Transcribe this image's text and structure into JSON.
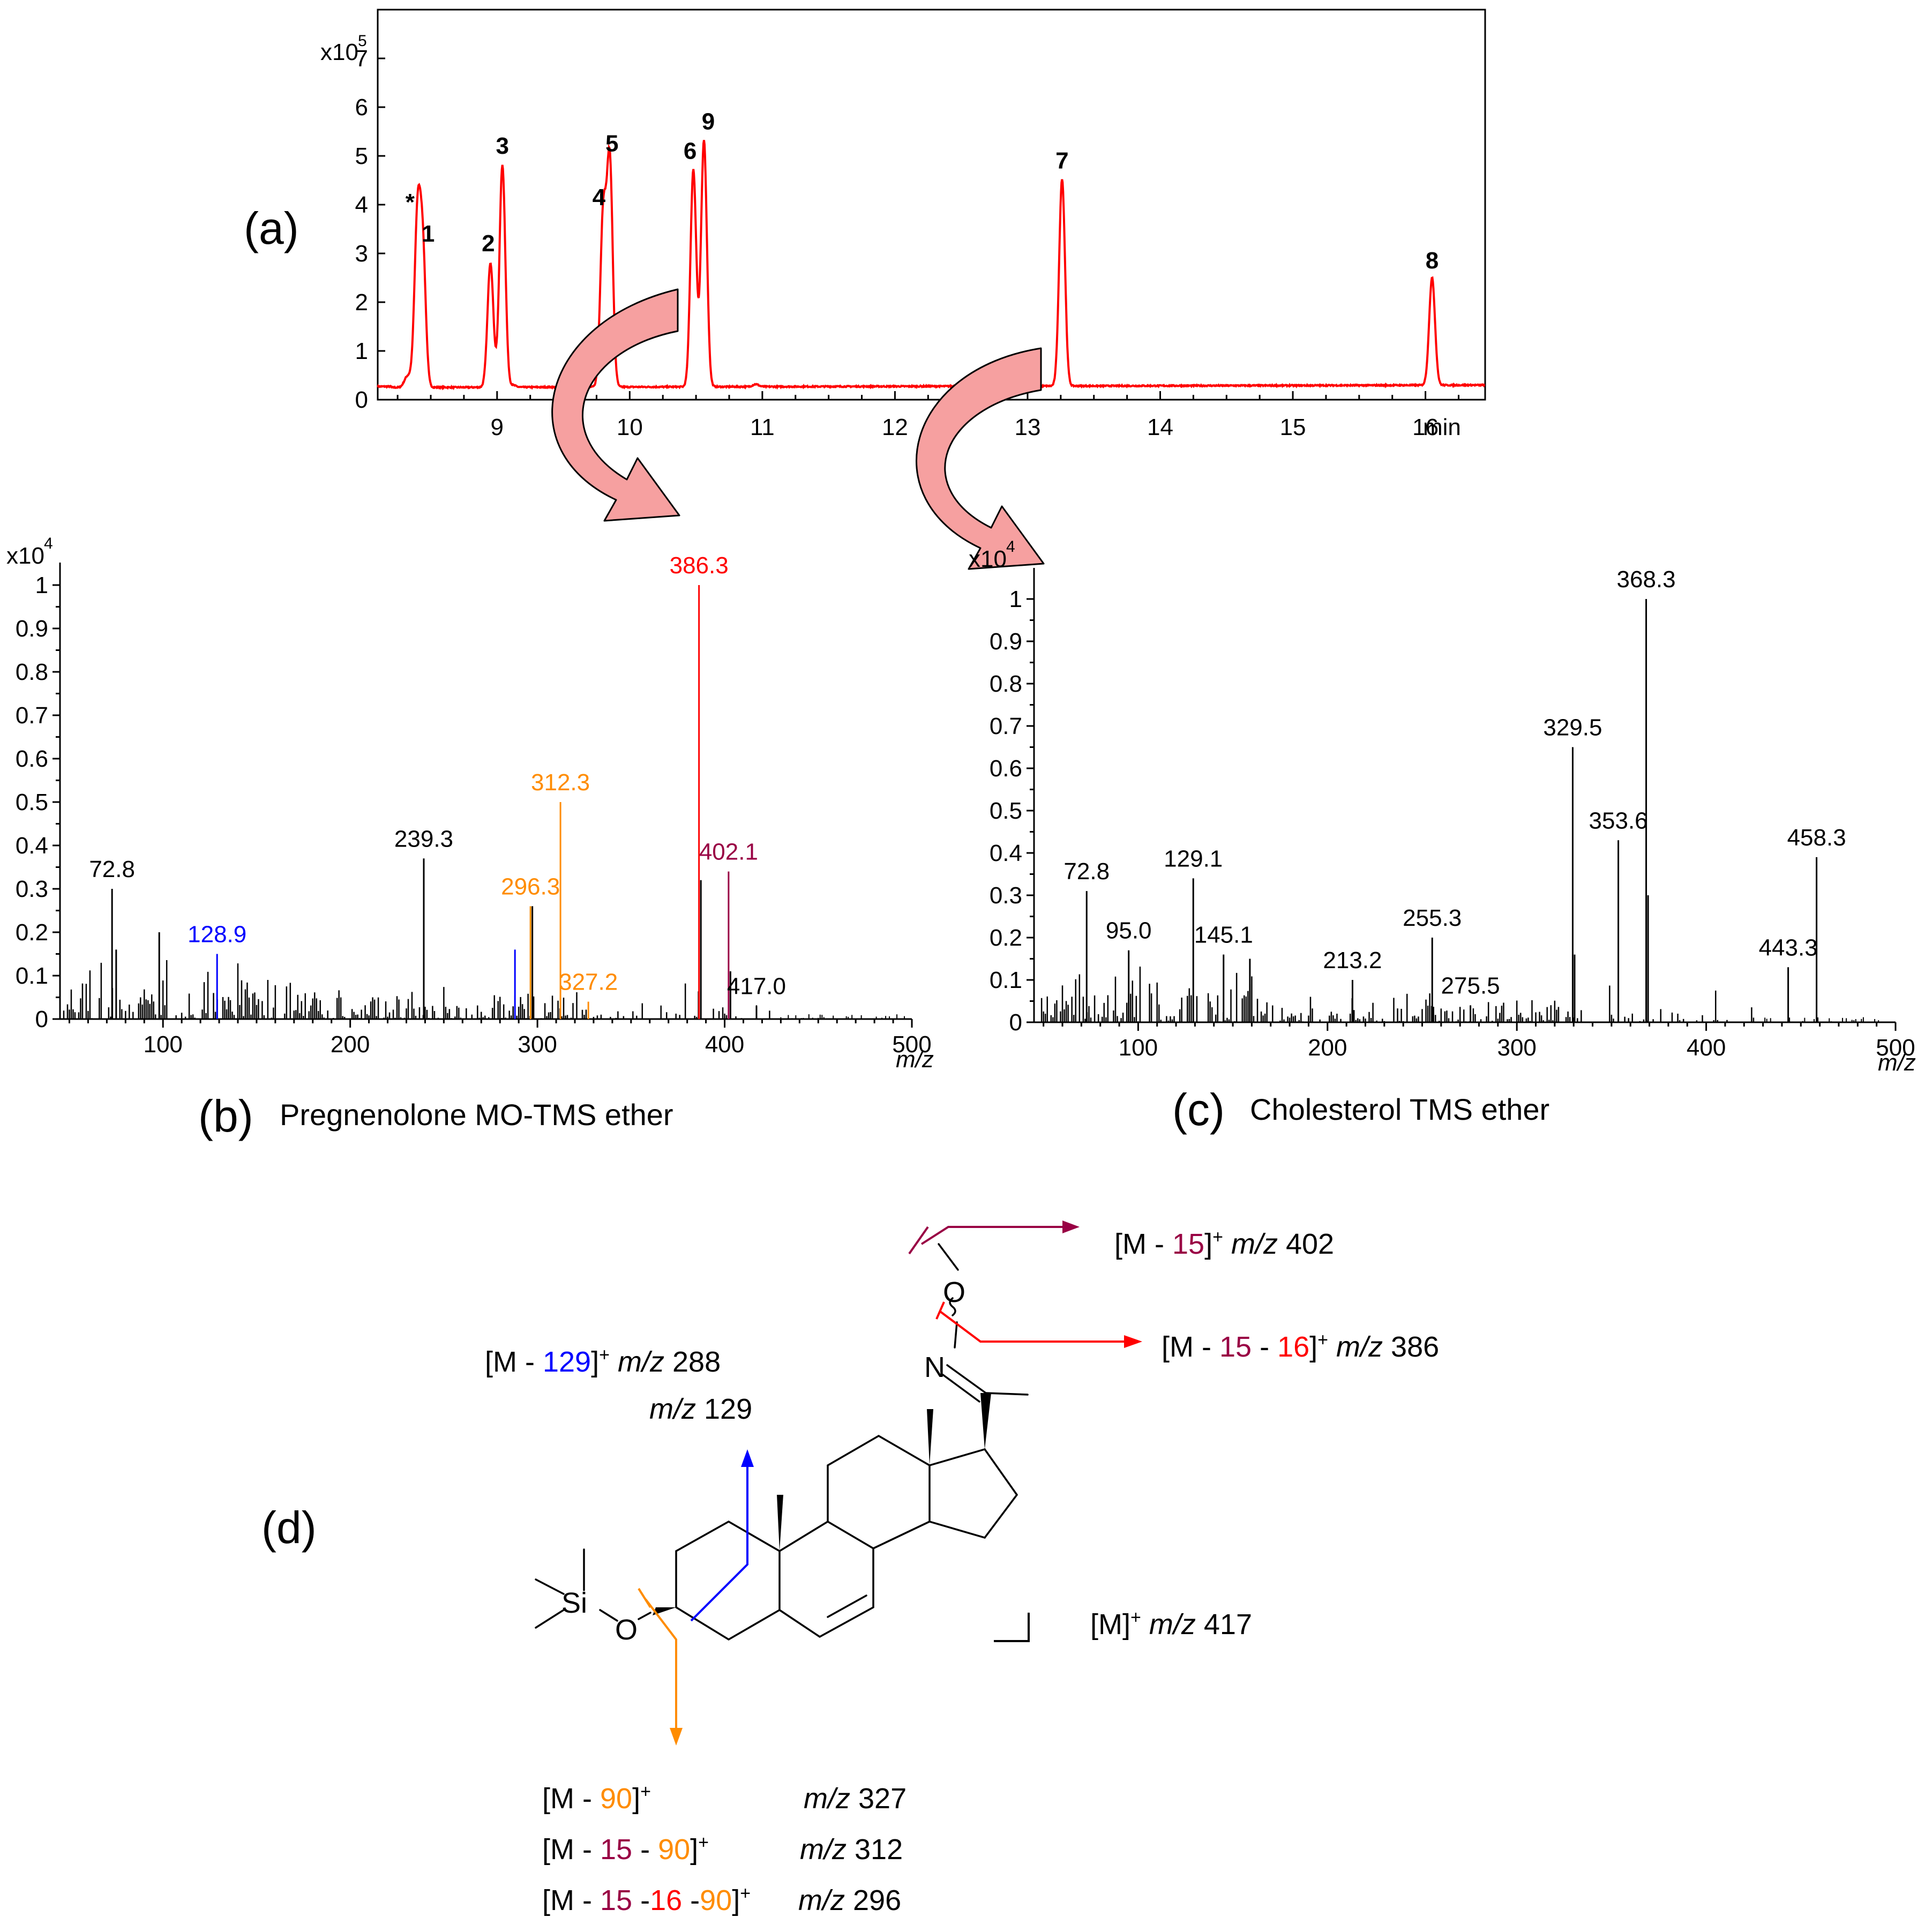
{
  "colors": {
    "red": "#ff0000",
    "orange": "#ff8c00",
    "purple": "#990044",
    "blue": "#0000ff",
    "arrow_fill": "#f6a0a0",
    "black": "#000000"
  },
  "panel_a": {
    "label": "(a)",
    "exponent_base": "x10",
    "exponent": "5",
    "unit": "min",
    "x_ticks": [
      "9",
      "10",
      "11",
      "12",
      "13",
      "14",
      "15",
      "16"
    ],
    "y_ticks": [
      "0",
      "1",
      "2",
      "3",
      "4",
      "5",
      "6",
      "7"
    ]
  },
  "panel_b": {
    "label": "(b)",
    "caption": "Pregnenolone MO-TMS ether",
    "exponent_base": "x10",
    "exponent": "4",
    "xlabel": "m/z",
    "x_ticks": [
      "100",
      "200",
      "300",
      "400",
      "500"
    ],
    "y_ticks": [
      "0",
      "0.1",
      "0.2",
      "0.3",
      "0.4",
      "0.5",
      "0.6",
      "0.7",
      "0.8",
      "0.9",
      "1"
    ]
  },
  "panel_c": {
    "label": "(c)",
    "caption": "Cholesterol TMS ether",
    "exponent_base": "x10",
    "exponent": "4",
    "xlabel": "m/z",
    "x_ticks": [
      "100",
      "200",
      "300",
      "400",
      "500"
    ],
    "y_ticks": [
      "0",
      "0.1",
      "0.2",
      "0.3",
      "0.4",
      "0.5",
      "0.6",
      "0.7",
      "0.8",
      "0.9",
      "1"
    ]
  },
  "panel_d": {
    "label": "(d)",
    "atoms": {
      "si": "Si",
      "o_ether": "O",
      "n": "N",
      "o_oxime": "O"
    },
    "fragments": {
      "m15": {
        "pre": "[M - ",
        "a": "15",
        "post": "]",
        "sup": "+",
        "mz": "m/z",
        "val": "402"
      },
      "m15_16": {
        "pre": "[M - ",
        "a": "15",
        "mid": " - ",
        "b": "16",
        "post": "]",
        "sup": "+",
        "mz": "m/z",
        "val": "386"
      },
      "m129": {
        "pre": "[M - ",
        "a": "129",
        "post": "]",
        "sup": "+",
        "mz": "m/z",
        "val": "288"
      },
      "mz129": {
        "mz": "m/z",
        "val": "129"
      },
      "m_ion": {
        "pre": "[M]",
        "sup": "+",
        "mz": "m/z",
        "val": "417"
      },
      "m90": {
        "pre": "[M - ",
        "a": "90",
        "post": "]",
        "sup": "+",
        "mz": "m/z",
        "val": "327"
      },
      "m15_90": {
        "pre": "[M - ",
        "a": "15",
        "mid": " - ",
        "b": "90",
        "post": "]",
        "sup": "+",
        "mz": "m/z",
        "val": "312"
      },
      "m15_16_90": {
        "pre": "[M - ",
        "a": "15",
        "mid": " -",
        "b": "16",
        "mid2": " -",
        "c": "90",
        "post": "]",
        "sup": "+",
        "mz": "m/z",
        "val": "296"
      }
    }
  },
  "chart_data": [
    {
      "id": "a",
      "type": "line",
      "xlim": [
        8.1,
        16.45
      ],
      "ylim": [
        0,
        8
      ],
      "x_ticks": [
        9,
        10,
        11,
        12,
        13,
        14,
        15,
        16
      ],
      "y_ticks": [
        0,
        1,
        2,
        3,
        4,
        5,
        6,
        7
      ],
      "color": "#ff0000",
      "baseline": 0.25,
      "peaks": [
        {
          "label": "*",
          "rt": 8.4,
          "height": 3.65
        },
        {
          "label": "1",
          "rt": 8.44,
          "height": 3.0
        },
        {
          "label": "2",
          "rt": 8.95,
          "height": 2.8
        },
        {
          "label": "3",
          "rt": 9.04,
          "height": 4.8
        },
        {
          "label": "4",
          "rt": 9.8,
          "height": 3.75
        },
        {
          "label": "5",
          "rt": 9.85,
          "height": 4.85
        },
        {
          "label": "6",
          "rt": 10.48,
          "height": 4.7
        },
        {
          "label": "9",
          "rt": 10.56,
          "height": 5.3
        },
        {
          "label": "7",
          "rt": 13.26,
          "height": 4.5
        },
        {
          "label": "8",
          "rt": 16.05,
          "height": 2.45
        }
      ]
    },
    {
      "id": "b",
      "type": "bar",
      "xlim": [
        45,
        500
      ],
      "ylim": [
        0,
        1.0
      ],
      "x_ticks": [
        100,
        200,
        300,
        400,
        500
      ],
      "y_ticks": [
        0,
        0.1,
        0.2,
        0.3,
        0.4,
        0.5,
        0.6,
        0.7,
        0.8,
        0.9,
        1
      ],
      "peaks": [
        {
          "mz": 386.3,
          "intensity": 1.0,
          "label": "386.3",
          "color": "#ff0000"
        },
        {
          "mz": 387.3,
          "intensity": 0.32,
          "label": "",
          "color": "#000000"
        },
        {
          "mz": 312.3,
          "intensity": 0.5,
          "label": "312.3",
          "color": "#ff8c00"
        },
        {
          "mz": 402.1,
          "intensity": 0.34,
          "label": "402.1",
          "color": "#990044"
        },
        {
          "mz": 239.3,
          "intensity": 0.37,
          "label": "239.3",
          "color": "#000000"
        },
        {
          "mz": 296.3,
          "intensity": 0.26,
          "label": "296.3",
          "color": "#ff8c00"
        },
        {
          "mz": 297.3,
          "intensity": 0.26,
          "label": "",
          "color": "#000000"
        },
        {
          "mz": 72.8,
          "intensity": 0.3,
          "label": "72.8",
          "color": "#000000"
        },
        {
          "mz": 128.9,
          "intensity": 0.15,
          "label": "128.9",
          "color": "#0000ff"
        },
        {
          "mz": 288.0,
          "intensity": 0.16,
          "label": "",
          "color": "#0000ff"
        },
        {
          "mz": 327.2,
          "intensity": 0.04,
          "label": "327.2",
          "color": "#ff8c00"
        },
        {
          "mz": 417.0,
          "intensity": 0.03,
          "label": "417.0",
          "color": "#000000"
        },
        {
          "mz": 403.1,
          "intensity": 0.11,
          "label": "",
          "color": "#000000"
        },
        {
          "mz": 98.0,
          "intensity": 0.2,
          "label": "",
          "color": "#000000"
        },
        {
          "mz": 75.0,
          "intensity": 0.16,
          "label": "",
          "color": "#000000"
        }
      ]
    },
    {
      "id": "c",
      "type": "bar",
      "xlim": [
        45,
        500
      ],
      "ylim": [
        0,
        1.0
      ],
      "x_ticks": [
        100,
        200,
        300,
        400,
        500
      ],
      "y_ticks": [
        0,
        0.1,
        0.2,
        0.3,
        0.4,
        0.5,
        0.6,
        0.7,
        0.8,
        0.9,
        1
      ],
      "peaks": [
        {
          "mz": 368.3,
          "intensity": 1.0,
          "label": "368.3",
          "color": "#000000"
        },
        {
          "mz": 369.3,
          "intensity": 0.3,
          "label": "",
          "color": "#000000"
        },
        {
          "mz": 329.5,
          "intensity": 0.65,
          "label": "329.5",
          "color": "#000000"
        },
        {
          "mz": 330.5,
          "intensity": 0.16,
          "label": "",
          "color": "#000000"
        },
        {
          "mz": 353.6,
          "intensity": 0.43,
          "label": "353.6",
          "color": "#000000"
        },
        {
          "mz": 458.3,
          "intensity": 0.39,
          "label": "458.3",
          "color": "#000000"
        },
        {
          "mz": 443.3,
          "intensity": 0.13,
          "label": "443.3",
          "color": "#000000"
        },
        {
          "mz": 129.1,
          "intensity": 0.34,
          "label": "129.1",
          "color": "#000000"
        },
        {
          "mz": 72.8,
          "intensity": 0.31,
          "label": "72.8",
          "color": "#000000"
        },
        {
          "mz": 95.0,
          "intensity": 0.17,
          "label": "95.0",
          "color": "#000000"
        },
        {
          "mz": 145.1,
          "intensity": 0.16,
          "label": "145.1",
          "color": "#000000"
        },
        {
          "mz": 213.2,
          "intensity": 0.1,
          "label": "213.2",
          "color": "#000000"
        },
        {
          "mz": 255.3,
          "intensity": 0.2,
          "label": "255.3",
          "color": "#000000"
        },
        {
          "mz": 275.5,
          "intensity": 0.04,
          "label": "275.5",
          "color": "#000000"
        },
        {
          "mz": 159.0,
          "intensity": 0.15,
          "label": "",
          "color": "#000000"
        }
      ]
    }
  ]
}
